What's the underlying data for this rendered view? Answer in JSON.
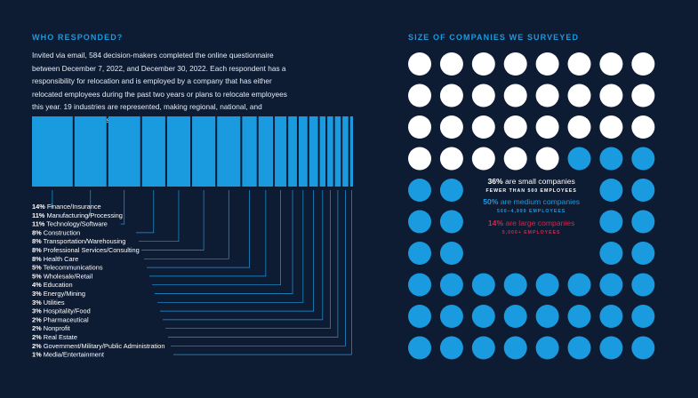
{
  "left_heading": "WHO RESPONDED?",
  "intro": "Invited via email, 584 decision-makers completed the online questionnaire between December 7, 2022, and December 30, 2022. Each respondent has a responsibility for relocation and is employed by a company that has either relocated employees during the past two years or plans to relocate employees this year. 19 industries are represented, making regional, national, and international relocations.",
  "right_heading": "SIZE OF COMPANIES WE SURVEYED",
  "colors": {
    "background": "#0d1b33",
    "accent_blue": "#1a9be0",
    "white": "#ffffff",
    "red": "#d22a4a"
  },
  "chart_data": [
    {
      "type": "bar",
      "orientation": "stacked-horizontal",
      "categories": [
        "Finance/Insurance",
        "Manufacturing/Processing",
        "Technology/Software",
        "Construction",
        "Transportation/Warehousing",
        "Professional Services/Consulting",
        "Health Care",
        "Telecommunications",
        "Wholesale/Retail",
        "Education",
        "Energy/Mining",
        "Utilities",
        "Hospitality/Food",
        "Pharmaceutical",
        "Nonprofit",
        "Real Estate",
        "Government/Military/Public Administration",
        "Media/Entertainment"
      ],
      "values": [
        14,
        11,
        11,
        8,
        8,
        8,
        8,
        5,
        5,
        4,
        3,
        3,
        3,
        2,
        2,
        2,
        2,
        1
      ],
      "value_labels": [
        "14%",
        "11%",
        "11%",
        "8%",
        "8%",
        "8%",
        "8%",
        "5%",
        "5%",
        "4%",
        "3%",
        "3%",
        "3%",
        "2%",
        "2%",
        "2%",
        "2%",
        "1%"
      ],
      "unit": "%"
    },
    {
      "type": "dot-matrix",
      "columns": 8,
      "rows": 10,
      "series": [
        {
          "label_pct": "36%",
          "label_text": " are small companies",
          "sub": "FEWER THAN 500 EMPLOYEES",
          "value": 36,
          "dots": 29,
          "color": "#ffffff"
        },
        {
          "label_pct": "50%",
          "label_text": " are medium companies",
          "sub": "500–4,999 EMPLOYEES",
          "value": 50,
          "dots": 39,
          "color": "#1a9be0"
        },
        {
          "label_pct": "14%",
          "label_text": " are large companies",
          "sub": "5,000+ EMPLOYEES",
          "value": 14,
          "dots": 10,
          "color": "#d22a4a"
        }
      ]
    }
  ]
}
